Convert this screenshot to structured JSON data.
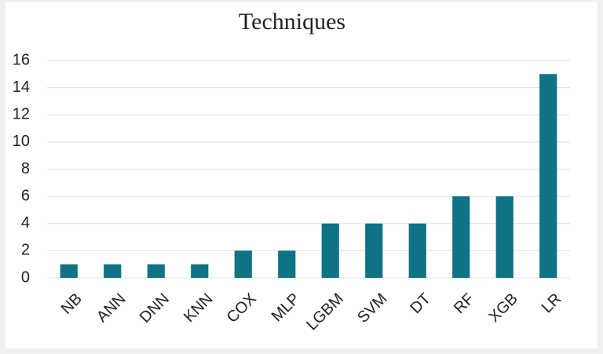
{
  "chart_data": {
    "type": "bar",
    "title": "Techniques",
    "categories": [
      "NB",
      "ANN",
      "DNN",
      "KNN",
      "COX",
      "MLP",
      "LGBM",
      "SVM",
      "DT",
      "RF",
      "XGB",
      "LR"
    ],
    "values": [
      1,
      1,
      1,
      1,
      2,
      2,
      4,
      4,
      4,
      6,
      6,
      15
    ],
    "color": "#0e7384",
    "ylim": [
      0,
      16
    ],
    "yticks": [
      0,
      2,
      4,
      6,
      8,
      10,
      12,
      14,
      16
    ],
    "grid": true
  }
}
